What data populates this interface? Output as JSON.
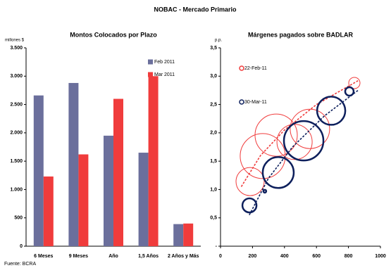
{
  "title": "NOBAC - Mercado Primario",
  "source": "Fuente: BCRA",
  "chart_data": [
    {
      "type": "bar",
      "title": "Montos Colocados por Plazo",
      "y_label": "millones $",
      "categories": [
        "6 Meses",
        "9 Meses",
        "Año",
        "1,5 Años",
        "2 Años y Más"
      ],
      "series": [
        {
          "name": "Feb 2011",
          "color": "#6b6f9c",
          "values": [
            2660,
            2880,
            1950,
            1650,
            390
          ]
        },
        {
          "name": "Mar 2011",
          "color": "#f03c3c",
          "values": [
            1230,
            1620,
            2600,
            3000,
            400
          ]
        }
      ],
      "ylim": [
        0,
        3500
      ],
      "yticks": [
        0,
        500,
        {
          "value": 1000,
          "label": "1.000"
        },
        {
          "value": 1500,
          "label": "1.500"
        },
        {
          "value": 2000,
          "label": "2.000"
        },
        {
          "value": 2500,
          "label": "2.500"
        },
        {
          "value": 3000,
          "label": "3.000"
        },
        {
          "value": 3500,
          "label": "3.500"
        }
      ],
      "legend": "upper-right"
    },
    {
      "type": "bubble",
      "title": "Márgenes pagados sobre BADLAR",
      "y_label": "p.p.",
      "series": [
        {
          "name": "22-Feb-11",
          "color": "#f03c3c",
          "x": [
            185,
            264,
            348,
            463,
            559,
            837
          ],
          "values": [
            1.14,
            1.59,
            1.96,
            1.84,
            2.07,
            2.88
          ],
          "sizes": [
            20,
            32,
            30,
            25,
            28,
            8
          ],
          "trend_x": [
            130,
            250,
            400,
            600,
            860
          ],
          "trend_y": [
            1.05,
            1.6,
            2.05,
            2.5,
            2.92
          ]
        },
        {
          "name": "30-Mar-11",
          "color": "#0d1f5c",
          "x": [
            181,
            277,
            361,
            520,
            692,
            806
          ],
          "values": [
            0.72,
            0.97,
            1.3,
            1.86,
            2.39,
            2.73
          ],
          "sizes": [
            10,
            2,
            22,
            28,
            20,
            6
          ],
          "trend_x": [
            180,
            300,
            450,
            650,
            860
          ],
          "trend_y": [
            0.55,
            1.2,
            1.75,
            2.3,
            2.75
          ]
        }
      ],
      "xlim": [
        0,
        1000
      ],
      "xticks": [
        0,
        200,
        400,
        600,
        800,
        1000
      ],
      "ylim": [
        0,
        3.5
      ],
      "yticks": [
        {
          "value": 0,
          "label": "-"
        },
        {
          "value": 0.5,
          "label": "0,5"
        },
        {
          "value": 1,
          "label": "1,0"
        },
        {
          "value": 1.5,
          "label": "1,5"
        },
        {
          "value": 2,
          "label": "2,0"
        },
        {
          "value": 2.5,
          "label": "2,5"
        },
        {
          "value": 3,
          "label": "3,0"
        },
        {
          "value": 3.5,
          "label": "3,5"
        }
      ],
      "legend": "upper-left"
    }
  ]
}
